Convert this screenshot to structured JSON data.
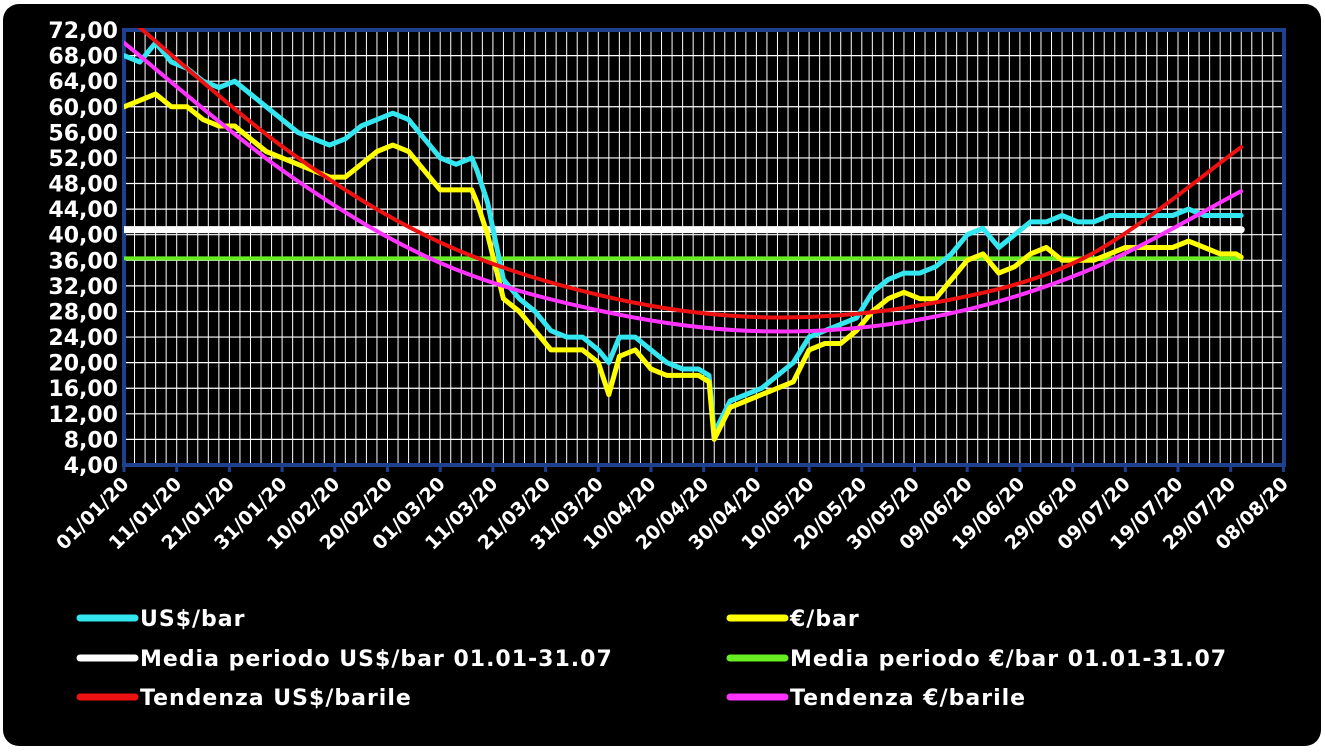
{
  "chart_data": {
    "type": "line",
    "title": "",
    "xlabel": "",
    "ylabel": "",
    "ylim": [
      4,
      72
    ],
    "xlim": [
      "01/01/20",
      "08/08/20"
    ],
    "grid": true,
    "legend_position": "bottom",
    "colors": {
      "background": "#000000",
      "plot_background": "#000000",
      "grid": "#ffffff",
      "axis": "#1f3f8f",
      "text": "#ffffff"
    },
    "y_tick_labels": [
      "4,00",
      "8,00",
      "12,00",
      "16,00",
      "20,00",
      "24,00",
      "28,00",
      "32,00",
      "36,00",
      "40,00",
      "44,00",
      "48,00",
      "52,00",
      "56,00",
      "60,00",
      "64,00",
      "68,00",
      "72,00"
    ],
    "y_ticks": [
      4,
      8,
      12,
      16,
      20,
      24,
      28,
      32,
      36,
      40,
      44,
      48,
      52,
      56,
      60,
      64,
      68,
      72
    ],
    "x_tick_labels": [
      "01/01/20",
      "11/01/20",
      "21/01/20",
      "31/01/20",
      "10/02/20",
      "20/02/20",
      "01/03/20",
      "11/03/20",
      "21/03/20",
      "31/03/20",
      "10/04/20",
      "20/04/20",
      "30/04/20",
      "10/05/20",
      "20/05/20",
      "30/05/20",
      "09/06/20",
      "19/06/20",
      "29/06/20",
      "09/07/20",
      "19/07/20",
      "29/07/20",
      "08/08/20"
    ],
    "series": [
      {
        "name": "US$/bar",
        "color": "#33e6f0",
        "width": 5,
        "x": [
          "01/01/20",
          "04/01/20",
          "07/01/20",
          "10/01/20",
          "13/01/20",
          "16/01/20",
          "19/01/20",
          "22/01/20",
          "25/01/20",
          "28/01/20",
          "31/01/20",
          "03/02/20",
          "06/02/20",
          "09/02/20",
          "12/02/20",
          "15/02/20",
          "18/02/20",
          "21/02/20",
          "24/02/20",
          "27/02/20",
          "01/03/20",
          "04/03/20",
          "07/03/20",
          "08/03/20",
          "10/03/20",
          "13/03/20",
          "16/03/20",
          "19/03/20",
          "22/03/20",
          "25/03/20",
          "28/03/20",
          "31/03/20",
          "02/04/20",
          "04/04/20",
          "07/04/20",
          "10/04/20",
          "13/04/20",
          "16/04/20",
          "19/04/20",
          "21/04/20",
          "22/04/20",
          "25/04/20",
          "28/04/20",
          "01/05/20",
          "04/05/20",
          "07/05/20",
          "10/05/20",
          "13/05/20",
          "16/05/20",
          "19/05/20",
          "22/05/20",
          "25/05/20",
          "28/05/20",
          "31/05/20",
          "03/06/20",
          "06/06/20",
          "09/06/20",
          "12/06/20",
          "15/06/20",
          "18/06/20",
          "21/06/20",
          "24/06/20",
          "27/06/20",
          "30/06/20",
          "03/07/20",
          "06/07/20",
          "09/07/20",
          "12/07/20",
          "15/07/20",
          "18/07/20",
          "21/07/20",
          "24/07/20",
          "27/07/20",
          "30/07/20",
          "31/07/20"
        ],
        "values": [
          68,
          67,
          70,
          67,
          66,
          64,
          63,
          64,
          62,
          60,
          58,
          56,
          55,
          54,
          55,
          57,
          58,
          59,
          58,
          55,
          52,
          51,
          52,
          50,
          45,
          33,
          30,
          28,
          25,
          24,
          24,
          22,
          20,
          24,
          24,
          22,
          20,
          19,
          19,
          18,
          9,
          14,
          15,
          16,
          18,
          20,
          24,
          25,
          26,
          27,
          31,
          33,
          34,
          34,
          35,
          37,
          40,
          41,
          38,
          40,
          42,
          42,
          43,
          42,
          42,
          43,
          43,
          43,
          43,
          43,
          44,
          43,
          43,
          43,
          43
        ]
      },
      {
        "name": "€/bar",
        "color": "#ffff00",
        "width": 5,
        "x": [
          "01/01/20",
          "04/01/20",
          "07/01/20",
          "10/01/20",
          "13/01/20",
          "16/01/20",
          "19/01/20",
          "22/01/20",
          "25/01/20",
          "28/01/20",
          "31/01/20",
          "03/02/20",
          "06/02/20",
          "09/02/20",
          "12/02/20",
          "15/02/20",
          "18/02/20",
          "21/02/20",
          "24/02/20",
          "27/02/20",
          "01/03/20",
          "04/03/20",
          "07/03/20",
          "08/03/20",
          "10/03/20",
          "13/03/20",
          "16/03/20",
          "19/03/20",
          "22/03/20",
          "25/03/20",
          "28/03/20",
          "31/03/20",
          "02/04/20",
          "04/04/20",
          "07/04/20",
          "10/04/20",
          "13/04/20",
          "16/04/20",
          "19/04/20",
          "21/04/20",
          "22/04/20",
          "25/04/20",
          "28/04/20",
          "01/05/20",
          "04/05/20",
          "07/05/20",
          "10/05/20",
          "13/05/20",
          "16/05/20",
          "19/05/20",
          "22/05/20",
          "25/05/20",
          "28/05/20",
          "31/05/20",
          "03/06/20",
          "06/06/20",
          "09/06/20",
          "12/06/20",
          "15/06/20",
          "18/06/20",
          "21/06/20",
          "24/06/20",
          "27/06/20",
          "30/06/20",
          "03/07/20",
          "06/07/20",
          "09/07/20",
          "12/07/20",
          "15/07/20",
          "18/07/20",
          "21/07/20",
          "24/07/20",
          "27/07/20",
          "30/07/20",
          "31/07/20"
        ],
        "values": [
          60,
          61,
          62,
          60,
          60,
          58,
          57,
          57,
          55,
          53,
          52,
          51,
          50,
          49,
          49,
          51,
          53,
          54,
          53,
          50,
          47,
          47,
          47,
          45,
          40,
          30,
          28,
          25,
          22,
          22,
          22,
          20,
          15,
          21,
          22,
          19,
          18,
          18,
          18,
          17,
          8,
          13,
          14,
          15,
          16,
          17,
          22,
          23,
          23,
          25,
          28,
          30,
          31,
          30,
          30,
          33,
          36,
          37,
          34,
          35,
          37,
          38,
          36,
          36,
          36,
          37,
          38,
          38,
          38,
          38,
          39,
          38,
          37,
          37,
          36.5
        ]
      },
      {
        "name": "Media periodo US$/bar 01.01-31.07",
        "color": "#ffffff",
        "width": 7,
        "x": [
          "01/01/20",
          "31/07/20"
        ],
        "values": [
          40.8,
          40.8
        ]
      },
      {
        "name": "Media periodo €/bar 01.01-31.07",
        "color": "#66ee22",
        "width": 4,
        "x": [
          "01/01/20",
          "31/07/20"
        ],
        "values": [
          36.3,
          36.3
        ]
      },
      {
        "name": "Tendenza US$/barile",
        "color": "#ee1111",
        "width": 4,
        "x": [
          "01/01/20",
          "01/02/20",
          "01/03/20",
          "01/04/20",
          "01/05/20",
          "01/06/20",
          "01/07/20",
          "31/07/20"
        ],
        "values": [
          74.5,
          53.2,
          38.8,
          30.4,
          27.1,
          29.1,
          36.3,
          53.7
        ]
      },
      {
        "name": "Tendenza €/barile",
        "color": "#ff33ff",
        "width": 4,
        "x": [
          "01/01/20",
          "01/02/20",
          "01/03/20",
          "01/04/20",
          "01/05/20",
          "01/06/20",
          "01/07/20",
          "31/07/20"
        ],
        "values": [
          70,
          49.5,
          35.6,
          28,
          24.9,
          26.9,
          34.1,
          46.8
        ]
      }
    ]
  }
}
